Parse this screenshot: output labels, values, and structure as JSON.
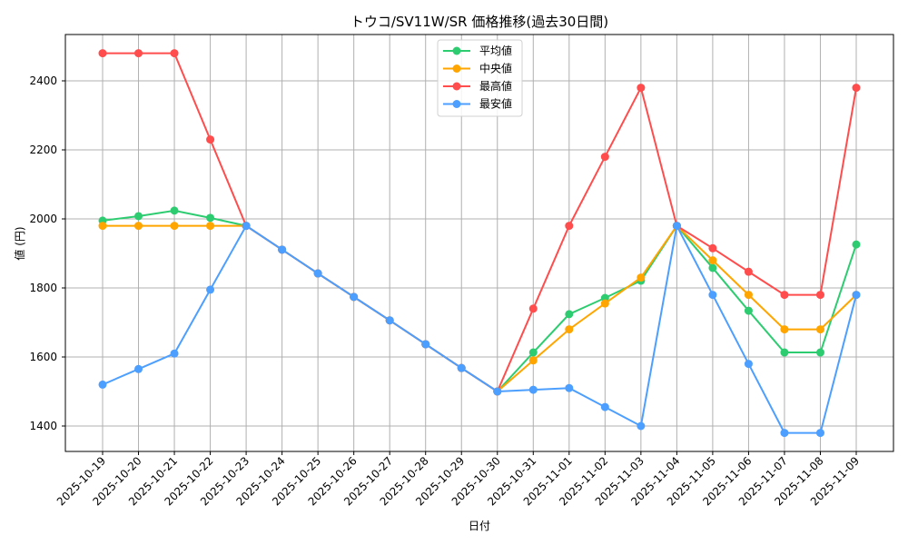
{
  "chart_data": {
    "type": "line",
    "title": "トウコ/SV11W/SR 価格推移(過去30日間)",
    "xlabel": "日付",
    "ylabel": "値 (円)",
    "ylim": [
      1330,
      2535
    ],
    "yticks": [
      1400,
      1600,
      1800,
      2000,
      2200,
      2400
    ],
    "grid": true,
    "legend_position": "upper center",
    "categories": [
      "2025-10-19",
      "2025-10-20",
      "2025-10-21",
      "2025-10-22",
      "2025-10-23",
      "2025-10-24",
      "2025-10-25",
      "2025-10-26",
      "2025-10-27",
      "2025-10-28",
      "2025-10-29",
      "2025-10-30",
      "2025-10-31",
      "2025-11-01",
      "2025-11-02",
      "2025-11-03",
      "2025-11-04",
      "2025-11-05",
      "2025-11-06",
      "2025-11-07",
      "2025-11-08",
      "2025-11-09"
    ],
    "series": [
      {
        "name": "平均値",
        "color": "#2ecc71",
        "values": [
          1995,
          2008,
          2024,
          2003,
          1980,
          1911,
          1842,
          1774,
          1706,
          1637,
          1568,
          1500,
          1613,
          1724,
          1771,
          1821,
          1980,
          1858,
          1734,
          1613,
          1613,
          1926
        ]
      },
      {
        "name": "中央値",
        "color": "#ffa500",
        "values": [
          1980,
          1980,
          1980,
          1980,
          1980,
          1911,
          1842,
          1774,
          1706,
          1637,
          1568,
          1500,
          1590,
          1680,
          1755,
          1830,
          1980,
          1880,
          1780,
          1680,
          1680,
          1780
        ]
      },
      {
        "name": "最高値",
        "color": "#ff4d4d",
        "values": [
          2480,
          2480,
          2480,
          2230,
          1980,
          1911,
          1842,
          1774,
          1706,
          1637,
          1568,
          1500,
          1740,
          1980,
          2180,
          2380,
          1980,
          1915,
          1847,
          1780,
          1780,
          2380
        ]
      },
      {
        "name": "最安値",
        "color": "#4d9fff",
        "values": [
          1520,
          1565,
          1610,
          1795,
          1980,
          1911,
          1842,
          1774,
          1706,
          1637,
          1568,
          1500,
          1505,
          1510,
          1455,
          1400,
          1980,
          1780,
          1580,
          1380,
          1380,
          1780
        ]
      }
    ]
  }
}
